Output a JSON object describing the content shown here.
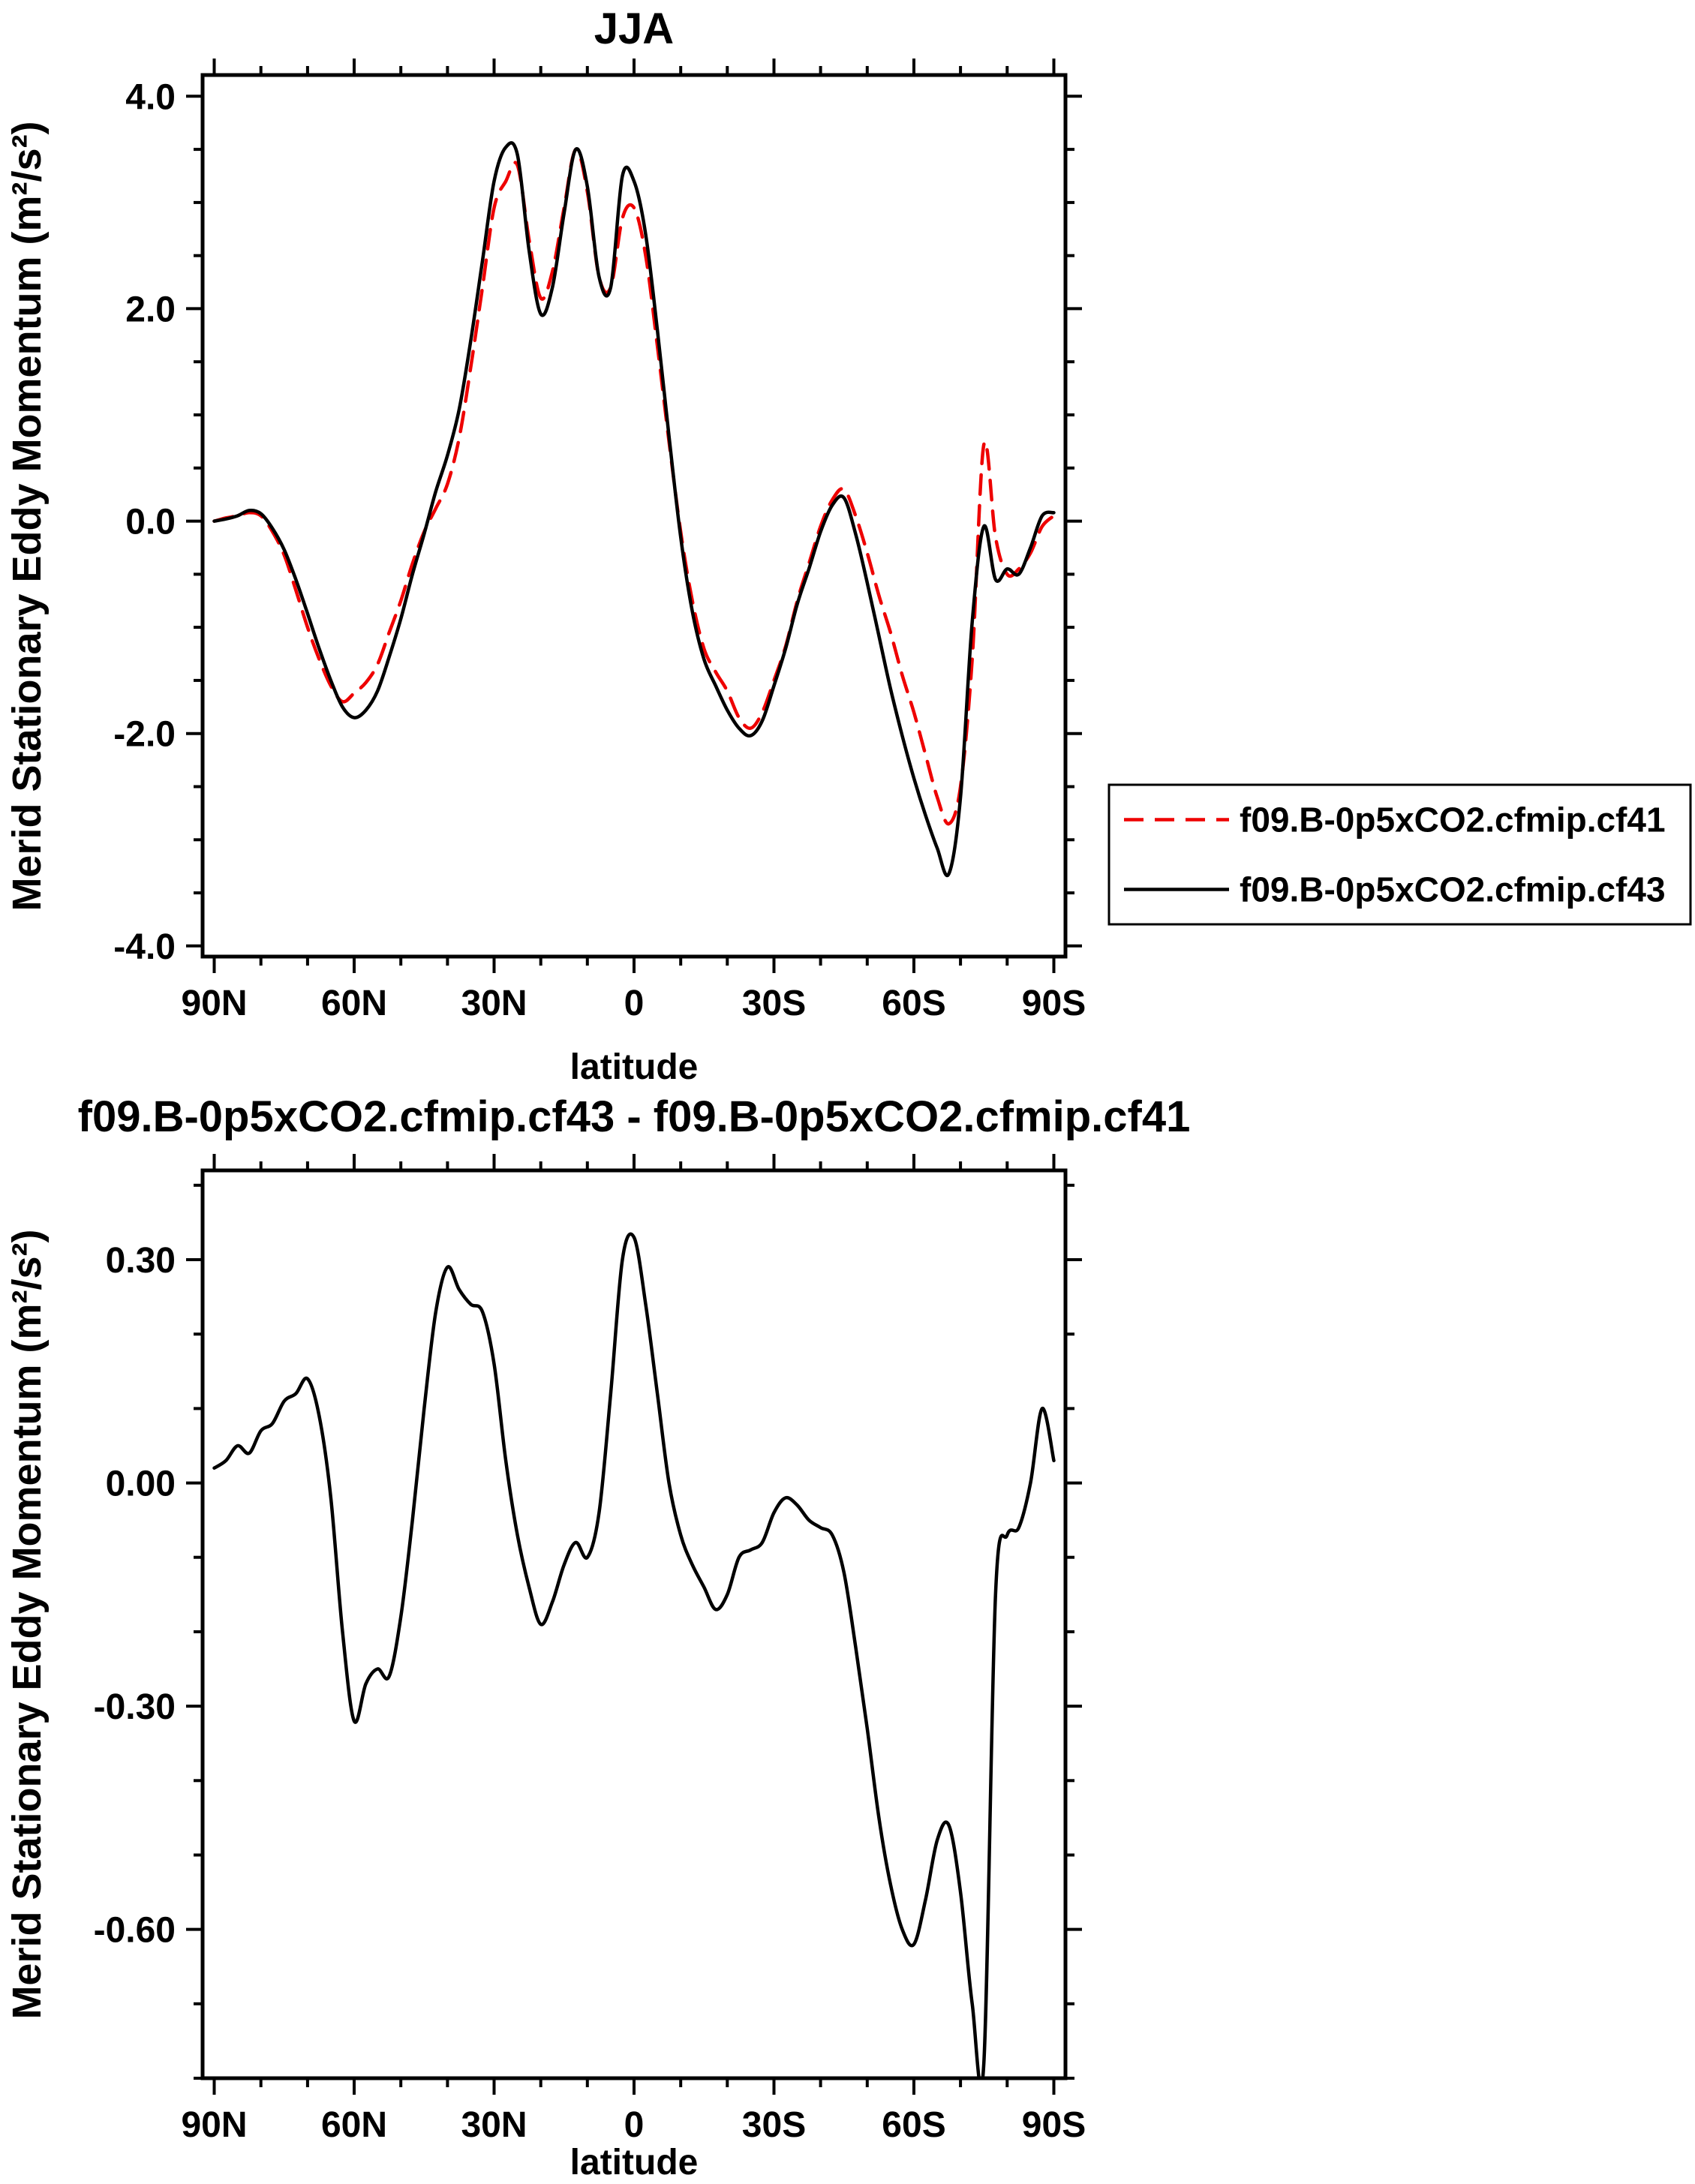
{
  "figure": {
    "background": "#ffffff",
    "text_color": "#000000"
  },
  "chart_data": [
    {
      "type": "line",
      "title": "JJA",
      "xlabel": "latitude",
      "ylabel": "Merid Stationary Eddy Momentum (m²/s²)",
      "xlim": [
        92.5,
        -92.5
      ],
      "ylim": [
        -4.1,
        4.2
      ],
      "xticks": [
        90,
        60,
        30,
        0,
        -30,
        -60,
        -90
      ],
      "xtick_labels": [
        "90N",
        "60N",
        "30N",
        "0",
        "30S",
        "60S",
        "90S"
      ],
      "yticks": [
        -4,
        -2,
        0,
        2,
        4
      ],
      "ytick_labels": [
        "-4.0",
        "-2.0",
        "0.0",
        "2.0",
        "4.0"
      ],
      "x_minor_step": 10,
      "y_minor_step": 0.5,
      "grid": false,
      "legend_position": "outside-right-lower",
      "x": [
        90,
        87.5,
        85,
        82.5,
        80,
        77.5,
        75,
        72.5,
        70,
        67.5,
        65,
        62.5,
        60,
        57.5,
        55,
        52.5,
        50,
        47.5,
        45,
        42.5,
        40,
        37.5,
        35,
        32.5,
        30,
        27.5,
        25,
        22.5,
        20,
        17.5,
        15,
        12.5,
        10,
        7.5,
        5,
        2.5,
        0,
        -2.5,
        -5,
        -7.5,
        -10,
        -12.5,
        -15,
        -17.5,
        -20,
        -22.5,
        -25,
        -27.5,
        -30,
        -32.5,
        -35,
        -37.5,
        -40,
        -42.5,
        -45,
        -47.5,
        -50,
        -52.5,
        -55,
        -57.5,
        -60,
        -62.5,
        -65,
        -67.5,
        -70,
        -72.5,
        -75,
        -77.5,
        -80,
        -82.5,
        -85,
        -87.5,
        -90
      ],
      "series": [
        {
          "name": "f09.B-0p5xCO2.cfmip.cf41",
          "color": "#ee0000",
          "style": "dashed",
          "values": [
            0.0,
            0.03,
            0.05,
            0.08,
            0.05,
            -0.1,
            -0.32,
            -0.65,
            -1.0,
            -1.3,
            -1.55,
            -1.7,
            -1.62,
            -1.52,
            -1.35,
            -1.05,
            -0.75,
            -0.4,
            -0.1,
            0.12,
            0.35,
            0.78,
            1.45,
            2.2,
            2.95,
            3.2,
            3.35,
            2.65,
            2.1,
            2.35,
            2.95,
            3.5,
            3.1,
            2.3,
            2.2,
            2.85,
            2.95,
            2.5,
            1.65,
            0.75,
            -0.1,
            -0.75,
            -1.2,
            -1.42,
            -1.6,
            -1.85,
            -1.95,
            -1.8,
            -1.5,
            -1.18,
            -0.75,
            -0.4,
            -0.05,
            0.2,
            0.3,
            0.05,
            -0.3,
            -0.7,
            -1.05,
            -1.45,
            -1.8,
            -2.2,
            -2.6,
            -2.85,
            -2.5,
            -1.3,
            0.72,
            -0.15,
            -0.5,
            -0.45,
            -0.3,
            -0.05,
            0.05
          ]
        },
        {
          "name": "f09.B-0p5xCO2.cfmip.cf43",
          "color": "#000000",
          "style": "solid",
          "values": [
            0.0,
            0.02,
            0.05,
            0.1,
            0.07,
            -0.07,
            -0.27,
            -0.55,
            -0.87,
            -1.2,
            -1.5,
            -1.75,
            -1.85,
            -1.78,
            -1.6,
            -1.28,
            -0.92,
            -0.5,
            -0.12,
            0.28,
            0.62,
            1.05,
            1.7,
            2.45,
            3.2,
            3.52,
            3.45,
            2.55,
            1.95,
            2.2,
            2.9,
            3.5,
            3.15,
            2.3,
            2.2,
            3.25,
            3.2,
            2.7,
            1.8,
            0.8,
            -0.15,
            -0.85,
            -1.3,
            -1.55,
            -1.78,
            -1.95,
            -2.02,
            -1.88,
            -1.55,
            -1.2,
            -0.78,
            -0.45,
            -0.1,
            0.15,
            0.22,
            -0.12,
            -0.58,
            -1.08,
            -1.58,
            -2.02,
            -2.42,
            -2.77,
            -3.08,
            -3.32,
            -2.6,
            -0.95,
            -0.05,
            -0.55,
            -0.45,
            -0.5,
            -0.25,
            0.05,
            0.08
          ]
        }
      ]
    },
    {
      "type": "line",
      "title": "f09.B-0p5xCO2.cfmip.cf43 - f09.B-0p5xCO2.cfmip.cf41",
      "xlabel": "latitude",
      "ylabel": "Merid Stationary Eddy Momentum (m²/s²)",
      "xlim": [
        92.5,
        -92.5
      ],
      "ylim": [
        -0.8,
        0.42
      ],
      "xticks": [
        90,
        60,
        30,
        0,
        -30,
        -60,
        -90
      ],
      "xtick_labels": [
        "90N",
        "60N",
        "30N",
        "0",
        "30S",
        "60S",
        "90S"
      ],
      "yticks": [
        -0.6,
        -0.3,
        0,
        0.3
      ],
      "ytick_labels": [
        "-0.60",
        "-0.30",
        "0.00",
        "0.30"
      ],
      "x_minor_step": 10,
      "y_minor_step": 0.1,
      "grid": false,
      "legend_position": "none",
      "x": [
        90,
        87.5,
        85,
        82.5,
        80,
        77.5,
        75,
        72.5,
        70,
        67.5,
        65,
        62.5,
        60,
        57.5,
        55,
        52.5,
        50,
        47.5,
        45,
        42.5,
        40,
        37.5,
        35,
        32.5,
        30,
        27.5,
        25,
        22.5,
        20,
        17.5,
        15,
        12.5,
        10,
        7.5,
        5,
        2.5,
        0,
        -2.5,
        -5,
        -7.5,
        -10,
        -12.5,
        -15,
        -17.5,
        -20,
        -22.5,
        -25,
        -27.5,
        -30,
        -32.5,
        -35,
        -37.5,
        -40,
        -42.5,
        -45,
        -47.5,
        -50,
        -52.5,
        -55,
        -57.5,
        -60,
        -62.5,
        -65,
        -67.5,
        -70,
        -72.5,
        -75,
        -77.5,
        -80,
        -82.5,
        -85,
        -87.5,
        -90
      ],
      "series": [
        {
          "color": "#000000",
          "style": "solid",
          "values": [
            0.02,
            0.03,
            0.05,
            0.04,
            0.07,
            0.08,
            0.11,
            0.12,
            0.14,
            0.09,
            -0.02,
            -0.2,
            -0.32,
            -0.27,
            -0.25,
            -0.26,
            -0.18,
            -0.05,
            0.1,
            0.23,
            0.29,
            0.26,
            0.24,
            0.23,
            0.16,
            0.03,
            -0.07,
            -0.14,
            -0.19,
            -0.16,
            -0.11,
            -0.08,
            -0.1,
            -0.04,
            0.12,
            0.3,
            0.33,
            0.24,
            0.12,
            0.0,
            -0.07,
            -0.11,
            -0.14,
            -0.17,
            -0.15,
            -0.1,
            -0.09,
            -0.08,
            -0.04,
            -0.02,
            -0.03,
            -0.05,
            -0.06,
            -0.07,
            -0.12,
            -0.22,
            -0.33,
            -0.45,
            -0.54,
            -0.6,
            -0.62,
            -0.56,
            -0.48,
            -0.46,
            -0.55,
            -0.7,
            -0.78,
            -0.15,
            -0.07,
            -0.06,
            0.0,
            0.1,
            0.03
          ]
        }
      ]
    }
  ]
}
